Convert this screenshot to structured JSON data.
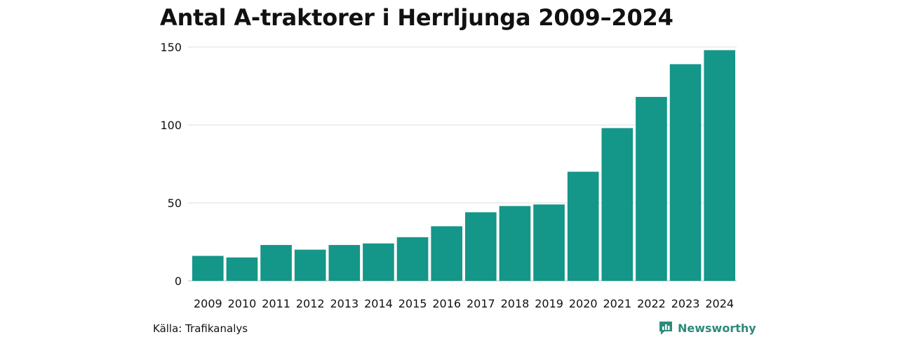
{
  "title": "Antal A-traktorer i Herrljunga 2009–2024",
  "source": "Källa: Trafikanalys",
  "brand": {
    "name": "Newsworthy",
    "color": "#2e8b7a",
    "icon": "bar-chart-speech-bubble-icon"
  },
  "colors": {
    "bar": "#149688",
    "grid": "#dedede"
  },
  "chart_data": {
    "type": "bar",
    "title": "Antal A-traktorer i Herrljunga 2009–2024",
    "xlabel": "",
    "ylabel": "",
    "categories": [
      "2009",
      "2010",
      "2011",
      "2012",
      "2013",
      "2014",
      "2015",
      "2016",
      "2017",
      "2018",
      "2019",
      "2020",
      "2021",
      "2022",
      "2023",
      "2024"
    ],
    "values": [
      16,
      15,
      23,
      20,
      23,
      24,
      28,
      35,
      44,
      48,
      49,
      70,
      98,
      118,
      139,
      148
    ],
    "ylim": [
      0,
      150
    ],
    "yticks": [
      0,
      50,
      100,
      150
    ],
    "grid": true,
    "legend": "none"
  }
}
